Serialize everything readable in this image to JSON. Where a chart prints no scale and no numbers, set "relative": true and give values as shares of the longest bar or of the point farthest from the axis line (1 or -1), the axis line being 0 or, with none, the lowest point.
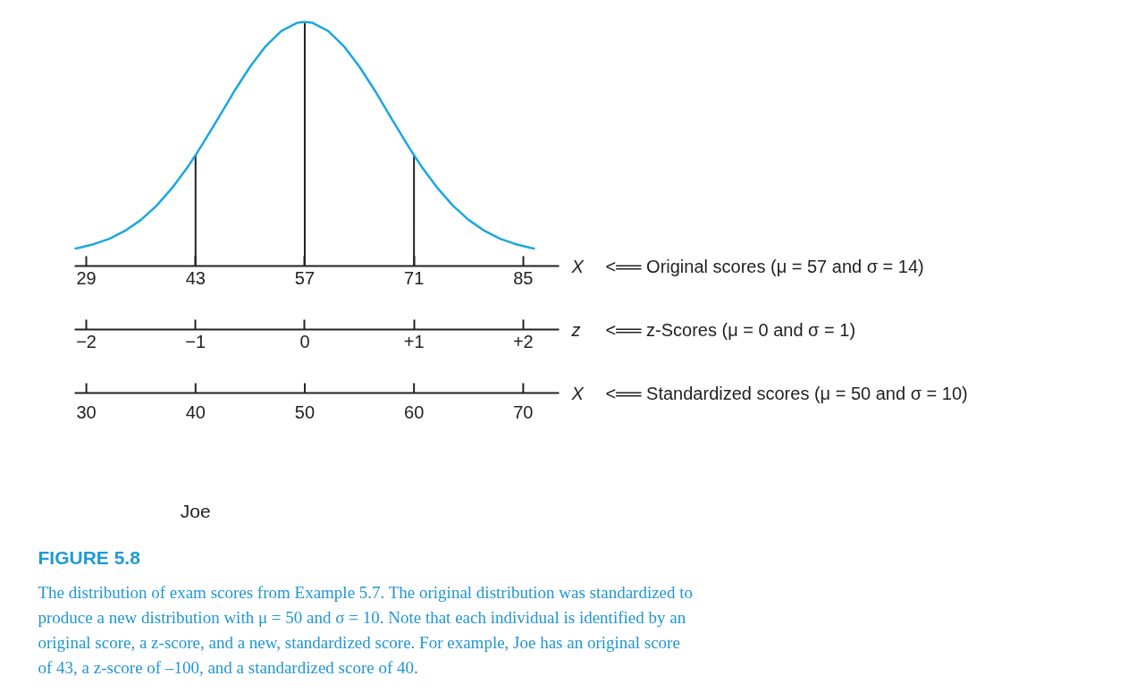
{
  "chart_data": {
    "type": "line",
    "relative": true,
    "title": "FIGURE 5.8",
    "color": "#1aa7e1",
    "x": [
      27.5,
      28,
      30,
      32,
      34,
      36,
      38,
      40,
      42,
      43,
      44,
      46,
      48,
      50,
      52,
      54,
      56,
      57,
      58,
      60,
      62,
      64,
      66,
      68,
      70,
      71,
      72,
      74,
      76,
      78,
      80,
      82,
      84,
      86,
      86.5
    ],
    "values": [
      0.071,
      0.074,
      0.09,
      0.112,
      0.145,
      0.189,
      0.247,
      0.32,
      0.406,
      0.454,
      0.505,
      0.61,
      0.718,
      0.817,
      0.901,
      0.963,
      0.996,
      1.0,
      0.996,
      0.963,
      0.901,
      0.817,
      0.718,
      0.61,
      0.505,
      0.454,
      0.406,
      0.32,
      0.247,
      0.189,
      0.145,
      0.112,
      0.09,
      0.074,
      0.071
    ],
    "xlim": [
      27.5,
      89.6
    ],
    "xticks": [
      29,
      43,
      57,
      71,
      85
    ],
    "xlabel": "X",
    "x2lim": [
      -2.107,
      2.329
    ],
    "x2ticks": [
      {
        "value": -2,
        "label": "−2"
      },
      {
        "value": -1,
        "label": "−1"
      },
      0,
      {
        "value": 1,
        "label": "+1"
      },
      {
        "value": 2,
        "label": "+2"
      }
    ],
    "x2label": "z",
    "ref_lines": [
      {
        "axis": "x",
        "value": 43
      },
      {
        "axis": "x",
        "value": 57
      },
      {
        "axis": "x",
        "value": 71
      }
    ],
    "annotations": [
      "<══ Original scores (μ = 57 and σ = 14)",
      "<══ z-Scores (μ = 0 and σ = 1)",
      "X",
      "<══ Standardized scores (μ = 50 and σ = 10)",
      "30",
      "40",
      "50",
      "60",
      "70",
      "Joe",
      "The distribution of exam scores from Example 5.7. The original distribution was standardized to produce a new distribution with μ = 50 and σ = 10. Note that each individual is identified by an original score, a z-score, and a new, standardized score. For example, Joe has an original score of 43, a z-score of –100, and a standardized score of 40."
    ]
  }
}
